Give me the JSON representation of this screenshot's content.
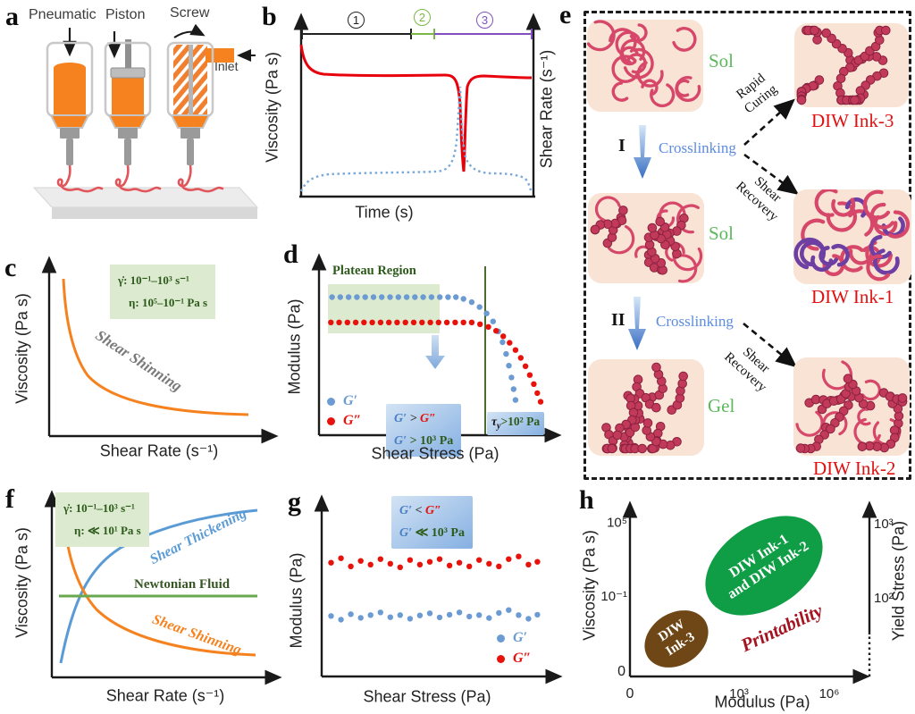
{
  "colors": {
    "accent_orange": "#f5821f",
    "curve_red": "#e8000d",
    "dot_blue": "#6b9bd2",
    "dot_red": "#e8120c",
    "stage_black": "#222222",
    "stage_green": "#7ab648",
    "stage_purple": "#8250be",
    "annotation_green": "#2d5a1b",
    "annotation_bg_green": "#dcead0",
    "sol_gel_green": "#5cb85c",
    "ink_red": "#e01010",
    "crosslink_blue": "#5b8ce0",
    "tangle_pink": "#d6476a",
    "bead_fill": "#c23a5a",
    "bead_stroke": "#8c2140",
    "tangle_purple": "#6e3fa3",
    "peach": "#f8e3d4",
    "ellipse_green": "#0f9d45",
    "ellipse_brown": "#6f4616",
    "printability_red": "#a51220",
    "newtonian_green": "#6aa84f",
    "thickening_blue": "#5b9bd5",
    "shinning_gray": "#7a7a7a",
    "dark_green_line": "#4e6b2f"
  },
  "panels": {
    "a": {
      "letter": "a",
      "labels": {
        "pneumatic": "Pneumatic",
        "piston": "Piston",
        "screw": "Screw",
        "inlet": "Inlet"
      }
    },
    "b": {
      "letter": "b",
      "xlabel": "Time (s)",
      "ylabel": "Viscosity (Pa s)",
      "ylabel_right": "Shear Rate (s⁻¹)",
      "stage1": "1",
      "stage2": "2",
      "stage3": "3"
    },
    "c": {
      "letter": "c",
      "xlabel": "Shear Rate (s⁻¹)",
      "ylabel": "Viscosity (Pa s)",
      "curve_label": "Shear Shinning",
      "ann_line1": "γ̇: 10⁻¹–10³ s⁻¹",
      "ann_line2": "η: 10⁵–10⁻¹ Pa s"
    },
    "d": {
      "letter": "d",
      "xlabel": "Shear Stress (Pa)",
      "ylabel": "Modulus (Pa)",
      "plateau": "Plateau Region",
      "legend_g1": "G′",
      "legend_g2": "G″",
      "box_g1": "G′",
      "box_op": " > ",
      "box_g2": "G″",
      "box2_g1": "G′",
      "box2_rest": " > 10³ Pa",
      "tau": "τ",
      "tau_sub": "y",
      "tau_rest": ">10² Pa"
    },
    "e": {
      "letter": "e",
      "sol": "Sol",
      "gel": "Gel",
      "ink1": "DIW Ink-1",
      "ink2": "DIW Ink-2",
      "ink3": "DIW Ink-3",
      "step1": "I",
      "step2": "II",
      "crosslinking": "Crosslinking",
      "rapid_l1": "Rapid",
      "rapid_l2": "Curing",
      "shear_l1": "Shear",
      "shear_l2": "Recovery"
    },
    "f": {
      "letter": "f",
      "xlabel": "Shear Rate (s⁻¹)",
      "ylabel": "Viscosity (Pa s)",
      "ann_line1": "γ̇: 10⁻¹–10³ s⁻¹",
      "ann_line2": "η: ≪ 10¹ Pa s",
      "thickening": "Shear Thickening",
      "newtonian": "Newtonian Fluid",
      "shinning": "Shear Shinning"
    },
    "g": {
      "letter": "g",
      "xlabel": "Shear Stress (Pa)",
      "ylabel": "Modulus (Pa)",
      "box_g1": "G′",
      "box_op": " < ",
      "box_g2": "G″",
      "box2_g1": "G′",
      "box2_rest": " ≪ 10³ Pa",
      "legend_g1": "G′",
      "legend_g2": "G″"
    },
    "h": {
      "letter": "h",
      "xlabel": "Modulus (Pa)",
      "ylabel": "Viscosity (Pa s)",
      "ylabel_right": "Yield Stress (Pa)",
      "xtick0": "0",
      "xtick1": "10³",
      "xtick2": "10⁶",
      "ytick0": "10⁵",
      "ytick1": "10⁻¹",
      "ytick2": "0",
      "rtick0": "10³",
      "rtick1": "10²",
      "region1_line1": "DIW Ink-1",
      "region1_line2": "and DIW Ink-2",
      "region2_line1": "DIW",
      "region2_line2": "Ink-3",
      "printability": "Printability"
    }
  },
  "chart_data": [
    {
      "id": "b",
      "type": "line",
      "xlabel": "Time (s)",
      "ylabel": "Viscosity (Pa s)",
      "ylabel_right": "Shear Rate (s⁻¹)",
      "stages": [
        {
          "label": "1",
          "color": "#222222",
          "span": [
            0,
            0.48
          ]
        },
        {
          "label": "2",
          "color": "#7ab648",
          "span": [
            0.48,
            0.58
          ]
        },
        {
          "label": "3",
          "color": "#8250be",
          "span": [
            0.58,
            1
          ]
        }
      ],
      "series": [
        {
          "name": "Viscosity",
          "color": "#e8000d",
          "style": "solid",
          "shape": "high plateau, sharp transient dip during stage 2, recovers in stage 3"
        },
        {
          "name": "Shear Rate",
          "color": "#7aa9d8",
          "style": "dotted",
          "shape": "low plateau, sharp spike during stage 2, returns low in stage 3"
        }
      ]
    },
    {
      "id": "c",
      "type": "line",
      "xlabel": "Shear Rate (s⁻¹)",
      "ylabel": "Viscosity (Pa s)",
      "series": [
        {
          "name": "Shear Shinning",
          "color": "#f5821f",
          "shape": "monotonically decreasing viscosity"
        }
      ],
      "annotations": [
        "γ̇: 10⁻¹–10³ s⁻¹",
        "η: 10⁵–10⁻¹ Pa s"
      ]
    },
    {
      "id": "d",
      "type": "scatter",
      "xlabel": "Shear Stress (Pa)",
      "ylabel": "Modulus (Pa)",
      "annotations": [
        "Plateau Region",
        "G′ > G″",
        "G′ > 10³ Pa",
        "τy>10² Pa"
      ],
      "series": [
        {
          "name": "G′",
          "color": "#6b9bd2",
          "points": [
            [
              0.055,
              0.235
            ],
            [
              0.09,
              0.235
            ],
            [
              0.125,
              0.235
            ],
            [
              0.16,
              0.235
            ],
            [
              0.195,
              0.235
            ],
            [
              0.23,
              0.235
            ],
            [
              0.265,
              0.235
            ],
            [
              0.3,
              0.235
            ],
            [
              0.335,
              0.235
            ],
            [
              0.37,
              0.235
            ],
            [
              0.405,
              0.235
            ],
            [
              0.44,
              0.235
            ],
            [
              0.475,
              0.235
            ],
            [
              0.51,
              0.235
            ],
            [
              0.545,
              0.235
            ],
            [
              0.578,
              0.235
            ],
            [
              0.61,
              0.245
            ],
            [
              0.645,
              0.263
            ],
            [
              0.678,
              0.29
            ],
            [
              0.708,
              0.325
            ],
            [
              0.735,
              0.37
            ],
            [
              0.757,
              0.425
            ],
            [
              0.775,
              0.485
            ],
            [
              0.79,
              0.55
            ],
            [
              0.802,
              0.615
            ],
            [
              0.813,
              0.68
            ],
            [
              0.822,
              0.745
            ],
            [
              0.83,
              0.805
            ]
          ]
        },
        {
          "name": "G″",
          "color": "#e8120c",
          "points": [
            [
              0.05,
              0.375
            ],
            [
              0.085,
              0.375
            ],
            [
              0.12,
              0.375
            ],
            [
              0.155,
              0.375
            ],
            [
              0.19,
              0.375
            ],
            [
              0.225,
              0.375
            ],
            [
              0.26,
              0.375
            ],
            [
              0.295,
              0.375
            ],
            [
              0.33,
              0.375
            ],
            [
              0.365,
              0.375
            ],
            [
              0.4,
              0.375
            ],
            [
              0.435,
              0.375
            ],
            [
              0.47,
              0.375
            ],
            [
              0.505,
              0.375
            ],
            [
              0.54,
              0.375
            ],
            [
              0.575,
              0.375
            ],
            [
              0.61,
              0.375
            ],
            [
              0.645,
              0.375
            ],
            [
              0.68,
              0.385
            ],
            [
              0.715,
              0.4
            ],
            [
              0.748,
              0.422
            ],
            [
              0.778,
              0.452
            ],
            [
              0.805,
              0.488
            ],
            [
              0.83,
              0.528
            ],
            [
              0.852,
              0.572
            ],
            [
              0.872,
              0.618
            ],
            [
              0.89,
              0.667
            ],
            [
              0.907,
              0.717
            ],
            [
              0.922,
              0.767
            ],
            [
              0.936,
              0.815
            ]
          ]
        }
      ]
    },
    {
      "id": "f",
      "type": "line",
      "xlabel": "Shear Rate (s⁻¹)",
      "ylabel": "Viscosity (Pa s)",
      "annotations": [
        "γ̇: 10⁻¹–10³ s⁻¹",
        "η: ≪ 10¹ Pa s"
      ],
      "series": [
        {
          "name": "Shear Thickening",
          "color": "#5b9bd5",
          "shape": "increasing viscosity"
        },
        {
          "name": "Newtonian Fluid",
          "color": "#6aa84f",
          "shape": "constant viscosity"
        },
        {
          "name": "Shear Shinning",
          "color": "#f5821f",
          "shape": "decreasing viscosity"
        }
      ]
    },
    {
      "id": "g",
      "type": "scatter",
      "xlabel": "Shear Stress (Pa)",
      "ylabel": "Modulus (Pa)",
      "annotations": [
        "G′ < G″",
        "G′ ≪ 10³ Pa"
      ],
      "series": [
        {
          "name": "G″",
          "color": "#e8120c",
          "points": [
            [
              0.04,
              0.37
            ],
            [
              0.082,
              0.345
            ],
            [
              0.124,
              0.39
            ],
            [
              0.166,
              0.36
            ],
            [
              0.208,
              0.38
            ],
            [
              0.25,
              0.35
            ],
            [
              0.292,
              0.375
            ],
            [
              0.334,
              0.395
            ],
            [
              0.376,
              0.355
            ],
            [
              0.418,
              0.38
            ],
            [
              0.46,
              0.365
            ],
            [
              0.502,
              0.35
            ],
            [
              0.544,
              0.385
            ],
            [
              0.586,
              0.37
            ],
            [
              0.628,
              0.39
            ],
            [
              0.67,
              0.355
            ],
            [
              0.712,
              0.375
            ],
            [
              0.754,
              0.39
            ],
            [
              0.796,
              0.35
            ],
            [
              0.838,
              0.335
            ],
            [
              0.88,
              0.38
            ],
            [
              0.918,
              0.365
            ]
          ]
        },
        {
          "name": "G′",
          "color": "#6b9bd2",
          "points": [
            [
              0.04,
              0.665
            ],
            [
              0.082,
              0.685
            ],
            [
              0.124,
              0.655
            ],
            [
              0.166,
              0.675
            ],
            [
              0.208,
              0.66
            ],
            [
              0.25,
              0.645
            ],
            [
              0.292,
              0.672
            ],
            [
              0.334,
              0.66
            ],
            [
              0.376,
              0.68
            ],
            [
              0.418,
              0.662
            ],
            [
              0.46,
              0.65
            ],
            [
              0.502,
              0.673
            ],
            [
              0.544,
              0.658
            ],
            [
              0.586,
              0.645
            ],
            [
              0.628,
              0.668
            ],
            [
              0.67,
              0.66
            ],
            [
              0.712,
              0.676
            ],
            [
              0.754,
              0.648
            ],
            [
              0.796,
              0.632
            ],
            [
              0.838,
              0.66
            ],
            [
              0.88,
              0.68
            ],
            [
              0.918,
              0.658
            ]
          ]
        }
      ]
    },
    {
      "id": "h",
      "type": "region-map",
      "xlabel": "Modulus (Pa)",
      "ylabel": "Viscosity (Pa s)",
      "ylabel_right": "Yield Stress (Pa)",
      "xticks": [
        "0",
        "10³",
        "10⁶"
      ],
      "yticks_left": [
        "10⁵",
        "10⁻¹",
        "0"
      ],
      "yticks_right": [
        "10³",
        "10²"
      ],
      "regions": [
        {
          "label": "DIW Ink-1 and DIW Ink-2",
          "color": "#0f9d45"
        },
        {
          "label": "DIW Ink-3",
          "color": "#6f4616"
        }
      ],
      "annotation": "Printability"
    }
  ]
}
